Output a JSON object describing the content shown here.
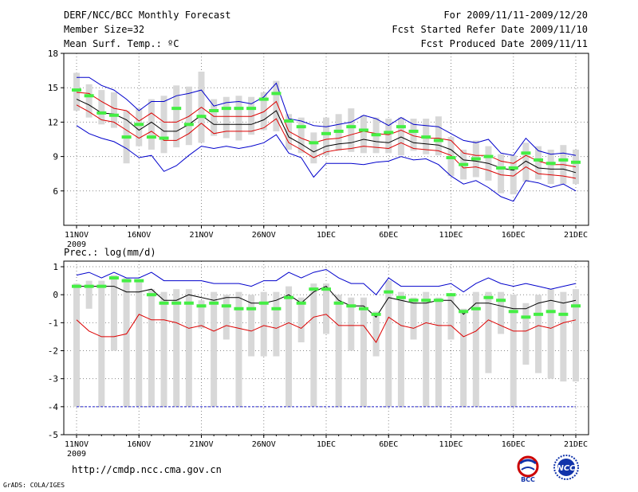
{
  "header": {
    "title": "DERF/NCC/BCC Monthly Forecast",
    "member_size": "Member Size=32",
    "variable": "Mean Surf. Temp.: ºC",
    "period": "For 2009/11/11-2009/12/20",
    "refer_date": "Fcst Started Refer Date 2009/11/10",
    "produced_date": "Fcst Produced Date 2009/11/11"
  },
  "footer": {
    "url": "http://cmdp.ncc.cma.gov.cn",
    "grads": "GrADS: COLA/IGES",
    "logo_bcc": "BCC",
    "logo_ncc": "NCC"
  },
  "colors": {
    "mean": "#000000",
    "spread": "#dd0000",
    "extreme": "#0000cc",
    "box": "#d8d8d8",
    "median": "#44ee44",
    "baseline": "#2222cc",
    "grid": "#888888"
  },
  "chart_data": [
    {
      "type": "line",
      "title": "Mean Surf. Temp.: ºC",
      "ylim": [
        3,
        18
      ],
      "yticks": [
        6,
        9,
        12,
        15,
        18
      ],
      "xlim": [
        0,
        40
      ],
      "xticks": [
        {
          "pos": 0,
          "label": "11NOV",
          "sub": "2009"
        },
        {
          "pos": 5,
          "label": "16NOV"
        },
        {
          "pos": 10,
          "label": "21NOV"
        },
        {
          "pos": 15,
          "label": "26NOV"
        },
        {
          "pos": 20,
          "label": "1DEC"
        },
        {
          "pos": 25,
          "label": "6DEC"
        },
        {
          "pos": 30,
          "label": "11DEC"
        },
        {
          "pos": 35,
          "label": "16DEC"
        },
        {
          "pos": 40,
          "label": "21DEC"
        }
      ],
      "series": [
        {
          "name": "max",
          "values": [
            15.9,
            15.9,
            15.2,
            14.8,
            14.0,
            13.0,
            13.8,
            13.8,
            14.3,
            14.5,
            14.8,
            13.4,
            13.7,
            13.8,
            13.6,
            14.2,
            15.4,
            12.3,
            12.1,
            11.7,
            11.6,
            11.8,
            12.0,
            12.6,
            12.3,
            11.7,
            12.4,
            11.8,
            11.7,
            11.6,
            11.0,
            10.4,
            10.2,
            10.5,
            9.3,
            9.1,
            10.6,
            9.5,
            9.2,
            9.3,
            9.1
          ]
        },
        {
          "name": "upper",
          "values": [
            14.6,
            14.5,
            13.8,
            13.2,
            13.0,
            12.1,
            12.8,
            12.0,
            12.0,
            12.5,
            13.3,
            12.5,
            12.5,
            12.5,
            12.5,
            12.9,
            13.8,
            11.2,
            10.6,
            10.2,
            10.5,
            10.6,
            10.9,
            11.2,
            11.0,
            10.9,
            11.3,
            10.8,
            10.6,
            10.6,
            10.4,
            9.3,
            9.1,
            9.1,
            8.6,
            8.4,
            9.1,
            8.6,
            8.3,
            8.3,
            8.1
          ]
        },
        {
          "name": "mean",
          "values": [
            14.0,
            13.5,
            12.8,
            12.7,
            12.2,
            11.3,
            12.0,
            11.2,
            11.2,
            11.8,
            12.6,
            11.8,
            11.8,
            11.8,
            11.8,
            12.2,
            13.0,
            10.7,
            10.1,
            9.4,
            9.9,
            10.1,
            10.2,
            10.5,
            10.3,
            10.2,
            10.7,
            10.2,
            10.1,
            10.0,
            9.6,
            8.7,
            8.6,
            8.4,
            8.0,
            7.8,
            8.6,
            8.0,
            7.9,
            7.9,
            7.6
          ]
        },
        {
          "name": "lower",
          "values": [
            13.5,
            12.9,
            12.2,
            12.0,
            11.3,
            10.6,
            11.2,
            10.4,
            10.4,
            11.0,
            11.9,
            11.0,
            11.2,
            11.2,
            11.2,
            11.5,
            12.3,
            10.2,
            9.6,
            8.9,
            9.4,
            9.6,
            9.7,
            9.9,
            9.8,
            9.7,
            10.2,
            9.7,
            9.6,
            9.5,
            9.1,
            8.0,
            8.1,
            7.8,
            7.4,
            7.3,
            8.1,
            7.5,
            7.4,
            7.3,
            7.1
          ]
        },
        {
          "name": "min",
          "values": [
            11.7,
            11.0,
            10.6,
            10.3,
            9.7,
            8.9,
            9.1,
            7.7,
            8.2,
            9.1,
            9.9,
            9.7,
            9.9,
            9.7,
            9.9,
            10.2,
            10.9,
            9.3,
            8.9,
            7.2,
            8.4,
            8.4,
            8.4,
            8.3,
            8.5,
            8.6,
            9.0,
            8.7,
            8.8,
            8.3,
            7.3,
            6.6,
            6.9,
            6.3,
            5.5,
            5.1,
            6.9,
            6.7,
            6.3,
            6.6,
            6.0
          ]
        }
      ],
      "boxes": [
        {
          "lo": 13.0,
          "hi": 16.3,
          "med": 14.8
        },
        {
          "lo": 12.4,
          "hi": 15.3,
          "med": 14.3
        },
        {
          "lo": 11.8,
          "hi": 14.8,
          "med": 12.8
        },
        {
          "lo": 11.5,
          "hi": 14.6,
          "med": 12.6
        },
        {
          "lo": 8.4,
          "hi": 13.0,
          "med": 10.7
        },
        {
          "lo": 9.9,
          "hi": 13.2,
          "med": 11.8
        },
        {
          "lo": 9.6,
          "hi": 14.0,
          "med": 10.7
        },
        {
          "lo": 9.3,
          "hi": 14.3,
          "med": 10.6
        },
        {
          "lo": 9.8,
          "hi": 15.2,
          "med": 13.2
        },
        {
          "lo": 10.0,
          "hi": 15.1,
          "med": 11.8
        },
        {
          "lo": 10.2,
          "hi": 16.4,
          "med": 12.5
        },
        {
          "lo": 10.8,
          "hi": 14.0,
          "med": 13.0
        },
        {
          "lo": 10.6,
          "hi": 14.2,
          "med": 13.2
        },
        {
          "lo": 10.4,
          "hi": 14.3,
          "med": 13.2
        },
        {
          "lo": 10.9,
          "hi": 14.2,
          "med": 13.2
        },
        {
          "lo": 11.3,
          "hi": 14.6,
          "med": 14.0
        },
        {
          "lo": 11.2,
          "hi": 15.6,
          "med": 14.5
        },
        {
          "lo": 9.6,
          "hi": 12.7,
          "med": 12.1
        },
        {
          "lo": 9.3,
          "hi": 12.4,
          "med": 11.6
        },
        {
          "lo": 8.4,
          "hi": 11.1,
          "med": 10.2
        },
        {
          "lo": 9.1,
          "hi": 12.4,
          "med": 11.0
        },
        {
          "lo": 9.5,
          "hi": 12.7,
          "med": 11.2
        },
        {
          "lo": 9.4,
          "hi": 13.2,
          "med": 11.6
        },
        {
          "lo": 9.3,
          "hi": 12.6,
          "med": 11.3
        },
        {
          "lo": 9.3,
          "hi": 12.4,
          "med": 10.9
        },
        {
          "lo": 9.3,
          "hi": 12.3,
          "med": 11.1
        },
        {
          "lo": 9.1,
          "hi": 12.4,
          "med": 11.6
        },
        {
          "lo": 9.5,
          "hi": 12.3,
          "med": 11.2
        },
        {
          "lo": 9.2,
          "hi": 12.3,
          "med": 10.7
        },
        {
          "lo": 9.1,
          "hi": 12.5,
          "med": 10.4
        },
        {
          "lo": 7.3,
          "hi": 10.7,
          "med": 8.9
        },
        {
          "lo": 7.0,
          "hi": 9.6,
          "med": 8.3
        },
        {
          "lo": 7.2,
          "hi": 10.4,
          "med": 8.8
        },
        {
          "lo": 6.9,
          "hi": 9.9,
          "med": 9.0
        },
        {
          "lo": 5.8,
          "hi": 9.2,
          "med": 8.0
        },
        {
          "lo": 5.7,
          "hi": 9.1,
          "med": 8.0
        },
        {
          "lo": 6.8,
          "hi": 10.2,
          "med": 9.3
        },
        {
          "lo": 7.0,
          "hi": 9.9,
          "med": 8.7
        },
        {
          "lo": 6.6,
          "hi": 9.6,
          "med": 8.4
        },
        {
          "lo": 6.6,
          "hi": 10.0,
          "med": 8.7
        },
        {
          "lo": 6.6,
          "hi": 9.6,
          "med": 8.5
        }
      ]
    },
    {
      "type": "line",
      "title": "Prec.: log(mm/d)",
      "ylim": [
        -5,
        1.2
      ],
      "yticks": [
        -5,
        -4,
        -3,
        -2,
        -1,
        0,
        1
      ],
      "xlim": [
        0,
        40
      ],
      "xticks": [
        {
          "pos": 0,
          "label": "11NOV",
          "sub": "2009"
        },
        {
          "pos": 5,
          "label": "16NOV"
        },
        {
          "pos": 10,
          "label": "21NOV"
        },
        {
          "pos": 15,
          "label": "26NOV"
        },
        {
          "pos": 20,
          "label": "1DEC"
        },
        {
          "pos": 25,
          "label": "6DEC"
        },
        {
          "pos": 30,
          "label": "11DEC"
        },
        {
          "pos": 35,
          "label": "16DEC"
        },
        {
          "pos": 40,
          "label": "21DEC"
        }
      ],
      "baseline": -4,
      "series": [
        {
          "name": "max",
          "values": [
            0.7,
            0.8,
            0.6,
            0.8,
            0.6,
            0.6,
            0.8,
            0.5,
            0.5,
            0.5,
            0.5,
            0.4,
            0.4,
            0.4,
            0.3,
            0.5,
            0.5,
            0.8,
            0.6,
            0.8,
            0.9,
            0.6,
            0.4,
            0.4,
            0.0,
            0.6,
            0.3,
            0.3,
            0.3,
            0.3,
            0.4,
            0.1,
            0.4,
            0.6,
            0.4,
            0.3,
            0.4,
            0.3,
            0.2,
            0.3,
            0.4
          ]
        },
        {
          "name": "mean",
          "values": [
            0.3,
            0.3,
            0.3,
            0.3,
            0.1,
            0.1,
            0.2,
            -0.2,
            -0.2,
            0.0,
            -0.1,
            -0.2,
            -0.1,
            -0.1,
            -0.3,
            -0.3,
            -0.2,
            0.0,
            -0.3,
            0.1,
            0.3,
            -0.2,
            -0.4,
            -0.4,
            -0.8,
            -0.1,
            -0.2,
            -0.3,
            -0.3,
            -0.2,
            -0.2,
            -0.7,
            -0.3,
            -0.3,
            -0.4,
            -0.5,
            -0.5,
            -0.3,
            -0.2,
            -0.3,
            -0.2
          ]
        },
        {
          "name": "min",
          "values": [
            -0.9,
            -1.3,
            -1.5,
            -1.5,
            -1.4,
            -0.7,
            -0.9,
            -0.9,
            -1.0,
            -1.2,
            -1.1,
            -1.3,
            -1.1,
            -1.2,
            -1.3,
            -1.1,
            -1.2,
            -1.0,
            -1.2,
            -0.8,
            -0.7,
            -1.1,
            -1.1,
            -1.1,
            -1.7,
            -0.8,
            -1.1,
            -1.2,
            -1.0,
            -1.1,
            -1.1,
            -1.5,
            -1.3,
            -0.9,
            -1.1,
            -1.3,
            -1.3,
            -1.1,
            -1.2,
            -1.0,
            -0.9
          ]
        }
      ],
      "boxes": [
        {
          "lo": -4.0,
          "hi": 0.4,
          "med": 0.3
        },
        {
          "lo": -0.5,
          "hi": 0.5,
          "med": 0.3
        },
        {
          "lo": -4.0,
          "hi": 0.5,
          "med": 0.3
        },
        {
          "lo": -2.0,
          "hi": 0.7,
          "med": 0.6
        },
        {
          "lo": -4.0,
          "hi": 0.6,
          "med": 0.5
        },
        {
          "lo": -4.0,
          "hi": 0.5,
          "med": 0.5
        },
        {
          "lo": -4.0,
          "hi": 0.2,
          "med": 0.0
        },
        {
          "lo": -4.0,
          "hi": 0.1,
          "med": -0.3
        },
        {
          "lo": -4.0,
          "hi": 0.2,
          "med": -0.3
        },
        {
          "lo": -4.0,
          "hi": 0.2,
          "med": -0.3
        },
        {
          "lo": -1.2,
          "hi": -0.2,
          "med": -0.4
        },
        {
          "lo": -4.0,
          "hi": 0.1,
          "med": -0.3
        },
        {
          "lo": -1.6,
          "hi": 0.0,
          "med": -0.4
        },
        {
          "lo": -4.0,
          "hi": 0.1,
          "med": -0.5
        },
        {
          "lo": -2.2,
          "hi": 0.0,
          "med": -0.5
        },
        {
          "lo": -2.2,
          "hi": 0.1,
          "med": -0.3
        },
        {
          "lo": -2.2,
          "hi": 0.1,
          "med": -0.5
        },
        {
          "lo": -4.0,
          "hi": 0.3,
          "med": -0.1
        },
        {
          "lo": -1.7,
          "hi": -0.1,
          "med": -0.3
        },
        {
          "lo": -4.0,
          "hi": 0.4,
          "med": 0.2
        },
        {
          "lo": -1.4,
          "hi": 0.4,
          "med": 0.2
        },
        {
          "lo": -4.0,
          "hi": 0.0,
          "med": -0.3
        },
        {
          "lo": -2.0,
          "hi": -0.1,
          "med": -0.4
        },
        {
          "lo": -4.0,
          "hi": -0.1,
          "med": -0.5
        },
        {
          "lo": -2.2,
          "hi": -0.6,
          "med": -0.7
        },
        {
          "lo": -4.0,
          "hi": 0.5,
          "med": 0.1
        },
        {
          "lo": -4.0,
          "hi": 0.1,
          "med": -0.1
        },
        {
          "lo": -1.6,
          "hi": -0.1,
          "med": -0.2
        },
        {
          "lo": -4.0,
          "hi": 0.1,
          "med": -0.2
        },
        {
          "lo": -4.0,
          "hi": -0.1,
          "med": -0.2
        },
        {
          "lo": -1.6,
          "hi": 0.0,
          "med": 0.0
        },
        {
          "lo": -4.0,
          "hi": -0.5,
          "med": -0.6
        },
        {
          "lo": -4.0,
          "hi": 0.1,
          "med": -0.5
        },
        {
          "lo": -2.8,
          "hi": 0.1,
          "med": -0.1
        },
        {
          "lo": -1.4,
          "hi": 0.1,
          "med": -0.2
        },
        {
          "lo": -4.0,
          "hi": 0.0,
          "med": -0.6
        },
        {
          "lo": -2.5,
          "hi": -0.3,
          "med": -0.8
        },
        {
          "lo": -2.8,
          "hi": 0.0,
          "med": -0.7
        },
        {
          "lo": -3.0,
          "hi": 0.2,
          "med": -0.6
        },
        {
          "lo": -3.1,
          "hi": 0.1,
          "med": -0.7
        },
        {
          "lo": -3.1,
          "hi": 0.2,
          "med": -0.4
        }
      ]
    }
  ]
}
